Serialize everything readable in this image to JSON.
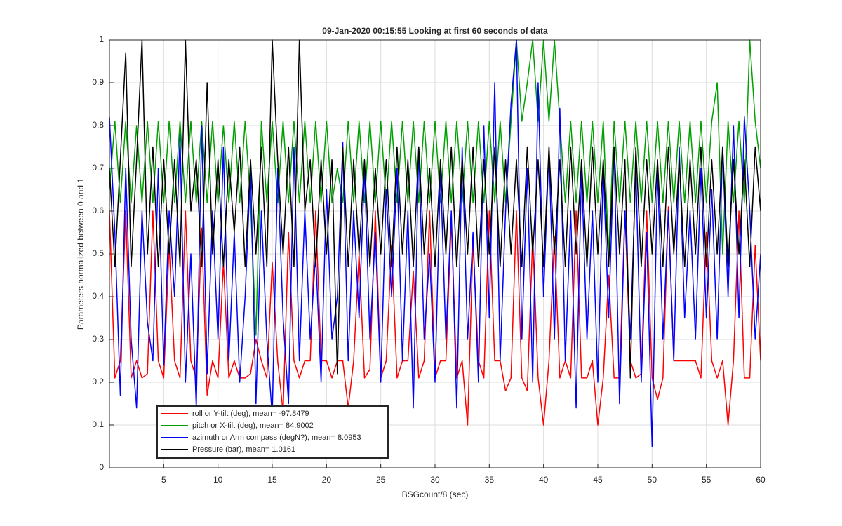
{
  "chart_data": {
    "type": "line",
    "title": "09-Jan-2020 00:15:55 Looking at first 60 seconds of data",
    "xlabel": "BSGcount/8 (sec)",
    "ylabel": "Parameters normalized between 0 and 1",
    "xlim": [
      0,
      60
    ],
    "ylim": [
      0,
      1
    ],
    "xticks": [
      5,
      10,
      15,
      20,
      25,
      30,
      35,
      40,
      45,
      50,
      55,
      60
    ],
    "yticks": [
      0,
      0.1,
      0.2,
      0.3,
      0.4,
      0.5,
      0.6,
      0.7,
      0.8,
      0.9,
      1
    ],
    "grid": true,
    "legend": "southwest",
    "x": [
      0,
      0.5,
      1,
      1.5,
      2,
      2.5,
      3,
      3.5,
      4,
      4.5,
      5,
      5.5,
      6,
      6.5,
      7,
      7.5,
      8,
      8.5,
      9,
      9.5,
      10,
      10.5,
      11,
      11.5,
      12,
      12.5,
      13,
      13.5,
      14,
      14.5,
      15,
      15.5,
      16,
      16.5,
      17,
      17.5,
      18,
      18.5,
      19,
      19.5,
      20,
      20.5,
      21,
      21.5,
      22,
      22.5,
      23,
      23.5,
      24,
      24.5,
      25,
      25.5,
      26,
      26.5,
      27,
      27.5,
      28,
      28.5,
      29,
      29.5,
      30,
      30.5,
      31,
      31.5,
      32,
      32.5,
      33,
      33.5,
      34,
      34.5,
      35,
      35.5,
      36,
      36.5,
      37,
      37.5,
      38,
      38.5,
      39,
      39.5,
      40,
      40.5,
      41,
      41.5,
      42,
      42.5,
      43,
      43.5,
      44,
      44.5,
      45,
      45.5,
      46,
      46.5,
      47,
      47.5,
      48,
      48.5,
      49,
      49.5,
      50,
      50.5,
      51,
      51.5,
      52,
      52.5,
      53,
      53.5,
      54,
      54.5,
      55,
      55.5,
      56,
      56.5,
      57,
      57.5,
      58,
      58.5,
      59,
      59.5,
      60
    ],
    "series": [
      {
        "name": "roll or Y-tilt (deg), mean= -97.8479",
        "color": "#ff0000",
        "values": [
          0.6,
          0.21,
          0.25,
          0.6,
          0.21,
          0.25,
          0.21,
          0.22,
          0.6,
          0.25,
          0.21,
          0.52,
          0.25,
          0.21,
          0.6,
          0.25,
          0.21,
          0.56,
          0.17,
          0.25,
          0.21,
          0.48,
          0.21,
          0.25,
          0.21,
          0.21,
          0.22,
          0.3,
          0.25,
          0.21,
          0.48,
          0.25,
          0.13,
          0.55,
          0.25,
          0.21,
          0.25,
          0.25,
          0.6,
          0.25,
          0.25,
          0.21,
          0.25,
          0.25,
          0.14,
          0.25,
          0.5,
          0.21,
          0.23,
          0.6,
          0.21,
          0.25,
          0.52,
          0.21,
          0.25,
          0.25,
          0.46,
          0.21,
          0.25,
          0.6,
          0.21,
          0.25,
          0.25,
          0.58,
          0.21,
          0.25,
          0.1,
          0.53,
          0.25,
          0.21,
          0.6,
          0.25,
          0.25,
          0.18,
          0.21,
          0.6,
          0.21,
          0.18,
          0.54,
          0.21,
          0.1,
          0.25,
          0.54,
          0.21,
          0.25,
          0.21,
          0.6,
          0.21,
          0.21,
          0.25,
          0.1,
          0.21,
          0.45,
          0.21,
          0.21,
          0.6,
          0.25,
          0.21,
          0.22,
          0.6,
          0.21,
          0.16,
          0.21,
          0.61,
          0.25,
          0.25,
          0.25,
          0.25,
          0.25,
          0.21,
          0.55,
          0.25,
          0.21,
          0.25,
          0.1,
          0.25,
          0.6,
          0.21,
          0.21,
          0.52,
          0.25
        ]
      },
      {
        "name": "pitch or X-tilt (deg), mean= 84.9002",
        "color": "#00a000",
        "values": [
          0.65,
          0.81,
          0.62,
          0.81,
          0.62,
          0.8,
          0.62,
          0.81,
          0.62,
          0.81,
          0.62,
          0.81,
          0.62,
          0.81,
          0.62,
          0.81,
          0.62,
          0.81,
          0.62,
          0.81,
          0.62,
          0.8,
          0.62,
          0.81,
          0.62,
          0.81,
          0.62,
          0.31,
          0.81,
          0.62,
          0.81,
          0.62,
          0.81,
          0.62,
          0.81,
          0.62,
          0.81,
          0.62,
          0.81,
          0.62,
          0.81,
          0.62,
          0.7,
          0.62,
          0.81,
          0.62,
          0.81,
          0.62,
          0.81,
          0.62,
          0.81,
          0.62,
          0.81,
          0.62,
          0.81,
          0.62,
          0.81,
          0.62,
          0.81,
          0.62,
          0.81,
          0.62,
          0.81,
          0.62,
          0.81,
          0.62,
          0.81,
          0.62,
          0.81,
          0.62,
          0.81,
          0.62,
          0.81,
          0.62,
          0.81,
          1.0,
          0.81,
          0.9,
          1.0,
          0.81,
          1.0,
          0.81,
          1.0,
          0.81,
          0.62,
          0.81,
          0.62,
          0.81,
          0.62,
          0.81,
          0.62,
          0.81,
          0.5,
          0.81,
          0.62,
          0.81,
          0.62,
          0.81,
          0.62,
          0.81,
          0.62,
          0.81,
          0.62,
          0.81,
          0.62,
          0.81,
          0.62,
          0.81,
          0.62,
          0.81,
          0.62,
          0.81,
          0.9,
          0.5,
          0.81,
          0.62,
          0.81,
          0.62,
          1.0,
          0.81,
          0.7
        ]
      },
      {
        "name": "azimuth or Arm compass (degN?), mean= 8.0953",
        "color": "#0000ff",
        "values": [
          0.82,
          0.55,
          0.17,
          0.7,
          0.3,
          0.14,
          0.6,
          0.34,
          0.25,
          0.7,
          0.24,
          0.6,
          0.4,
          0.78,
          0.2,
          0.5,
          0.14,
          0.8,
          0.22,
          0.6,
          0.3,
          0.75,
          0.25,
          0.55,
          0.2,
          0.4,
          0.7,
          0.15,
          0.6,
          0.3,
          0.12,
          0.7,
          0.35,
          0.15,
          0.75,
          0.25,
          0.6,
          0.3,
          0.5,
          0.2,
          0.65,
          0.3,
          0.4,
          0.76,
          0.25,
          0.6,
          0.35,
          0.7,
          0.3,
          0.55,
          0.2,
          0.65,
          0.4,
          0.7,
          0.25,
          0.6,
          0.14,
          0.75,
          0.3,
          0.5,
          0.2,
          0.7,
          0.3,
          0.6,
          0.14,
          0.75,
          0.3,
          0.55,
          0.2,
          0.8,
          0.35,
          0.9,
          0.25,
          0.6,
          0.85,
          1.0,
          0.3,
          0.7,
          0.2,
          0.9,
          0.4,
          0.75,
          0.3,
          0.84,
          0.25,
          0.6,
          0.14,
          0.7,
          0.3,
          0.6,
          0.2,
          0.7,
          0.35,
          0.75,
          0.15,
          0.6,
          0.3,
          0.7,
          0.2,
          0.55,
          0.05,
          0.7,
          0.3,
          0.6,
          0.25,
          0.75,
          0.35,
          0.6,
          0.3,
          0.7,
          0.35,
          0.65,
          0.3,
          0.75,
          0.4,
          0.8,
          0.35,
          0.82,
          0.6,
          0.3,
          0.5
        ]
      },
      {
        "name": "Pressure (bar), mean= 1.0161",
        "color": "#000000",
        "values": [
          0.7,
          0.47,
          0.72,
          0.97,
          0.47,
          0.72,
          1.0,
          0.5,
          0.75,
          0.47,
          0.72,
          0.5,
          0.72,
          0.47,
          1.0,
          0.6,
          0.72,
          0.47,
          0.9,
          0.5,
          0.72,
          0.47,
          0.72,
          0.55,
          0.75,
          0.47,
          0.72,
          0.5,
          0.75,
          0.47,
          1.0,
          0.72,
          0.5,
          0.75,
          0.47,
          1.0,
          0.6,
          0.72,
          0.47,
          0.72,
          0.5,
          0.72,
          0.22,
          0.75,
          0.47,
          0.72,
          0.5,
          0.72,
          0.47,
          0.7,
          0.5,
          0.72,
          0.47,
          0.75,
          0.5,
          0.72,
          0.47,
          0.75,
          0.5,
          0.7,
          0.47,
          0.72,
          0.5,
          0.75,
          0.47,
          0.72,
          0.5,
          0.75,
          0.47,
          0.72,
          0.5,
          0.75,
          0.47,
          0.72,
          0.5,
          0.72,
          0.47,
          0.75,
          0.5,
          0.72,
          0.47,
          0.75,
          0.5,
          0.72,
          0.47,
          0.75,
          0.5,
          0.72,
          0.47,
          0.75,
          0.5,
          0.72,
          0.47,
          0.75,
          0.5,
          0.72,
          0.21,
          0.75,
          0.47,
          0.72,
          0.5,
          0.72,
          0.47,
          0.75,
          0.5,
          0.72,
          0.47,
          0.72,
          0.5,
          0.75,
          0.47,
          0.72,
          0.5,
          0.75,
          0.47,
          0.72,
          0.5,
          0.72,
          0.47,
          0.75,
          0.6
        ]
      }
    ]
  }
}
